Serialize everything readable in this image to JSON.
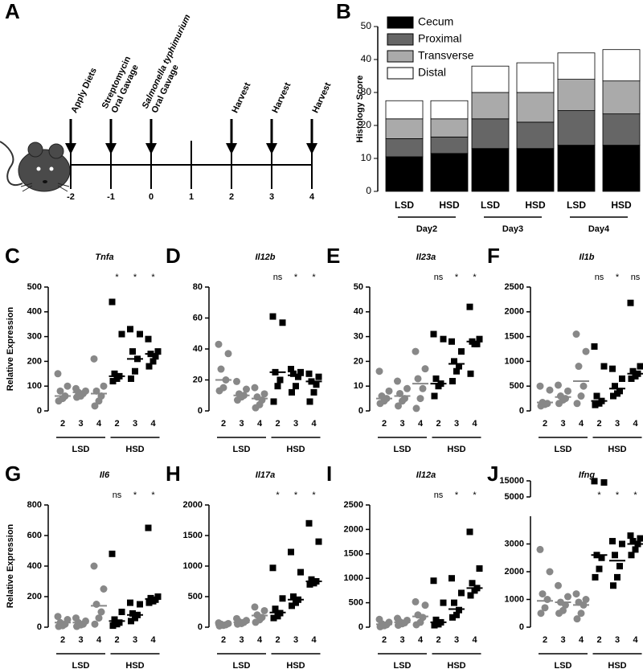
{
  "panel_a": {
    "panel_label": "A",
    "ticks": [
      -2,
      -1,
      0,
      1,
      2,
      3,
      4
    ],
    "events": [
      [
        "Apply Diets"
      ],
      [
        "Streptomycin",
        "Oral Gavage"
      ],
      [
        "Salmonella typhimurium",
        "Oral Gavage"
      ],
      null,
      [
        "Harvest"
      ],
      [
        "Harvest"
      ],
      [
        "Harvest"
      ]
    ]
  },
  "chart_data": [
    {
      "type": "stacked_bar",
      "panel_label": "B",
      "y_label": "Histology Score",
      "categories": [
        "LSD",
        "HSD",
        "LSD",
        "HSD",
        "LSD",
        "HSD"
      ],
      "groups": [
        "Day2",
        "Day3",
        "Day4"
      ],
      "series": [
        {
          "name": "Cecum",
          "color": "#000000",
          "values": [
            10.5,
            11.5,
            13,
            13,
            14,
            14
          ]
        },
        {
          "name": "Proximal",
          "color": "#666666",
          "values": [
            5.5,
            5,
            9,
            8,
            10.5,
            9.5
          ]
        },
        {
          "name": "Transverse",
          "color": "#aaaaaa",
          "values": [
            6,
            5.5,
            8,
            9,
            9.5,
            10
          ]
        },
        {
          "name": "Distal",
          "color": "#ffffff",
          "values": [
            5.5,
            5.5,
            8,
            9,
            8,
            9.5
          ]
        }
      ],
      "ylim": [
        0,
        50
      ],
      "yticks": [
        0,
        10,
        20,
        30,
        40,
        50
      ]
    },
    {
      "type": "dot",
      "panel_label": "C",
      "title": "Tnfa",
      "y_label": "Relative Expression",
      "categories": [
        "2",
        "3",
        "4",
        "2",
        "3",
        "4"
      ],
      "groups": [
        "LSD",
        "HSD"
      ],
      "colors": [
        "#888888",
        "#000000"
      ],
      "points": [
        [
          150,
          100,
          80,
          60,
          50,
          40
        ],
        [
          90,
          80,
          75,
          70,
          60,
          55
        ],
        [
          210,
          100,
          80,
          60,
          40,
          20
        ],
        [
          440,
          310,
          150,
          140,
          130,
          120
        ],
        [
          330,
          310,
          240,
          210,
          160,
          130
        ],
        [
          290,
          240,
          230,
          220,
          200,
          180
        ]
      ],
      "means": [
        60,
        75,
        70,
        140,
        210,
        230
      ],
      "significance": [
        null,
        null,
        null,
        "*",
        "*",
        "*"
      ],
      "ylim": [
        0,
        500
      ],
      "yticks": [
        0,
        100,
        200,
        300,
        400,
        500
      ]
    },
    {
      "type": "dot",
      "panel_label": "D",
      "title": "Il12b",
      "categories": [
        "2",
        "3",
        "4",
        "2",
        "3",
        "4"
      ],
      "groups": [
        "LSD",
        "HSD"
      ],
      "colors": [
        "#888888",
        "#000000"
      ],
      "points": [
        [
          43,
          37,
          27,
          20,
          15,
          13
        ],
        [
          19,
          14,
          11,
          10,
          9,
          7
        ],
        [
          15,
          11,
          9,
          7,
          4,
          2
        ],
        [
          61,
          57,
          25,
          20,
          16,
          6
        ],
        [
          27,
          25,
          24,
          22,
          16,
          12
        ],
        [
          24,
          22,
          19,
          17,
          12,
          6
        ]
      ],
      "means": [
        20,
        10,
        8,
        25,
        23,
        19
      ],
      "significance": [
        null,
        null,
        null,
        "ns",
        "*",
        "*"
      ],
      "ylim": [
        0,
        80
      ],
      "yticks": [
        0,
        20,
        40,
        60,
        80
      ]
    },
    {
      "type": "dot",
      "panel_label": "E",
      "title": "Il23a",
      "categories": [
        "2",
        "3",
        "4",
        "2",
        "3",
        "4"
      ],
      "groups": [
        "LSD",
        "HSD"
      ],
      "colors": [
        "#888888",
        "#000000"
      ],
      "points": [
        [
          16,
          8,
          6,
          5,
          4,
          3
        ],
        [
          12,
          9,
          7,
          5,
          4,
          2
        ],
        [
          24,
          17,
          13,
          9,
          5,
          1
        ],
        [
          31,
          29,
          13,
          11,
          10,
          6
        ],
        [
          28,
          24,
          20,
          18,
          16,
          12
        ],
        [
          42,
          29,
          28,
          27,
          27,
          15
        ]
      ],
      "means": [
        5,
        6,
        11,
        11,
        19,
        28
      ],
      "significance": [
        null,
        null,
        null,
        "ns",
        "*",
        "*"
      ],
      "ylim": [
        0,
        50
      ],
      "yticks": [
        0,
        10,
        20,
        30,
        40,
        50
      ]
    },
    {
      "type": "dot",
      "panel_label": "F",
      "title": "Il1b",
      "categories": [
        "2",
        "3",
        "4",
        "2",
        "3",
        "4"
      ],
      "groups": [
        "LSD",
        "HSD"
      ],
      "colors": [
        "#888888",
        "#000000"
      ],
      "points": [
        [
          500,
          420,
          170,
          150,
          130,
          100
        ],
        [
          520,
          400,
          300,
          250,
          220,
          150
        ],
        [
          1550,
          1200,
          900,
          500,
          300,
          150
        ],
        [
          1300,
          900,
          300,
          200,
          150,
          120
        ],
        [
          850,
          650,
          500,
          400,
          350,
          300
        ],
        [
          2180,
          900,
          800,
          750,
          700,
          650
        ]
      ],
      "means": [
        170,
        280,
        600,
        200,
        450,
        750
      ],
      "significance": [
        null,
        null,
        null,
        "ns",
        "*",
        "ns"
      ],
      "ylim": [
        0,
        2500
      ],
      "yticks": [
        0,
        500,
        1000,
        1500,
        2000,
        2500
      ]
    },
    {
      "type": "dot",
      "panel_label": "G",
      "title": "Il6",
      "y_label": "Relative Expression",
      "categories": [
        "2",
        "3",
        "4",
        "2",
        "3",
        "4"
      ],
      "groups": [
        "LSD",
        "HSD"
      ],
      "colors": [
        "#888888",
        "#000000"
      ],
      "points": [
        [
          70,
          50,
          30,
          20,
          10,
          5
        ],
        [
          60,
          40,
          30,
          20,
          15,
          5
        ],
        [
          400,
          250,
          150,
          100,
          60,
          20
        ],
        [
          480,
          100,
          50,
          30,
          20,
          10
        ],
        [
          160,
          150,
          90,
          80,
          60,
          40
        ],
        [
          650,
          200,
          190,
          180,
          170,
          160
        ]
      ],
      "means": [
        30,
        30,
        140,
        40,
        80,
        185
      ],
      "significance": [
        null,
        null,
        null,
        "ns",
        "*",
        "*"
      ],
      "ylim": [
        0,
        800
      ],
      "yticks": [
        0,
        200,
        400,
        600,
        800
      ]
    },
    {
      "type": "dot",
      "panel_label": "H",
      "title": "Il17a",
      "categories": [
        "2",
        "3",
        "4",
        "2",
        "3",
        "4"
      ],
      "groups": [
        "LSD",
        "HSD"
      ],
      "colors": [
        "#888888",
        "#000000"
      ],
      "points": [
        [
          70,
          60,
          50,
          40,
          30,
          20
        ],
        [
          140,
          110,
          90,
          80,
          60,
          50
        ],
        [
          330,
          270,
          200,
          160,
          120,
          80
        ],
        [
          970,
          470,
          300,
          230,
          180,
          150
        ],
        [
          1230,
          900,
          500,
          450,
          400,
          350
        ],
        [
          1700,
          1400,
          780,
          750,
          720,
          700
        ]
      ],
      "means": [
        40,
        80,
        190,
        240,
        450,
        750
      ],
      "significance": [
        null,
        null,
        null,
        "*",
        "*",
        "*"
      ],
      "ylim": [
        0,
        2000
      ],
      "yticks": [
        0,
        500,
        1000,
        1500,
        2000
      ]
    },
    {
      "type": "dot",
      "panel_label": "I",
      "title": "Il12a",
      "categories": [
        "2",
        "3",
        "4",
        "2",
        "3",
        "4"
      ],
      "groups": [
        "LSD",
        "HSD"
      ],
      "colors": [
        "#888888",
        "#000000"
      ],
      "points": [
        [
          160,
          100,
          70,
          50,
          30,
          10
        ],
        [
          180,
          140,
          110,
          90,
          70,
          40
        ],
        [
          520,
          450,
          250,
          200,
          100,
          50
        ],
        [
          950,
          500,
          150,
          100,
          60,
          40
        ],
        [
          1000,
          700,
          500,
          350,
          250,
          200
        ],
        [
          1950,
          1200,
          900,
          800,
          750,
          650
        ]
      ],
      "means": [
        60,
        100,
        220,
        100,
        370,
        800
      ],
      "significance": [
        null,
        null,
        null,
        "ns",
        "*",
        "*"
      ],
      "ylim": [
        0,
        2500
      ],
      "yticks": [
        0,
        500,
        1000,
        1500,
        2000,
        2500
      ]
    },
    {
      "type": "dot",
      "panel_label": "J",
      "title": "Ifng",
      "categories": [
        "2",
        "3",
        "4",
        "2",
        "3",
        "4"
      ],
      "groups": [
        "LSD",
        "HSD"
      ],
      "colors": [
        "#888888",
        "#000000"
      ],
      "points": [
        [
          2800,
          2000,
          1200,
          1000,
          700,
          500
        ],
        [
          1500,
          1100,
          900,
          800,
          600,
          500
        ],
        [
          1200,
          1000,
          900,
          800,
          500,
          300
        ],
        [
          14800,
          14000,
          2600,
          2500,
          2100,
          1800
        ],
        [
          3100,
          3000,
          2600,
          2200,
          1800,
          1500
        ],
        [
          3300,
          3200,
          3100,
          3000,
          2800,
          2600
        ]
      ],
      "means": [
        950,
        900,
        800,
        2600,
        2400,
        3000
      ],
      "significance": [
        null,
        null,
        null,
        "*",
        "*",
        "*"
      ],
      "ylim": [
        0,
        15000
      ],
      "axis_break": [
        4000,
        5000
      ],
      "yticks": [
        0,
        1000,
        2000,
        3000,
        5000,
        15000
      ]
    }
  ]
}
